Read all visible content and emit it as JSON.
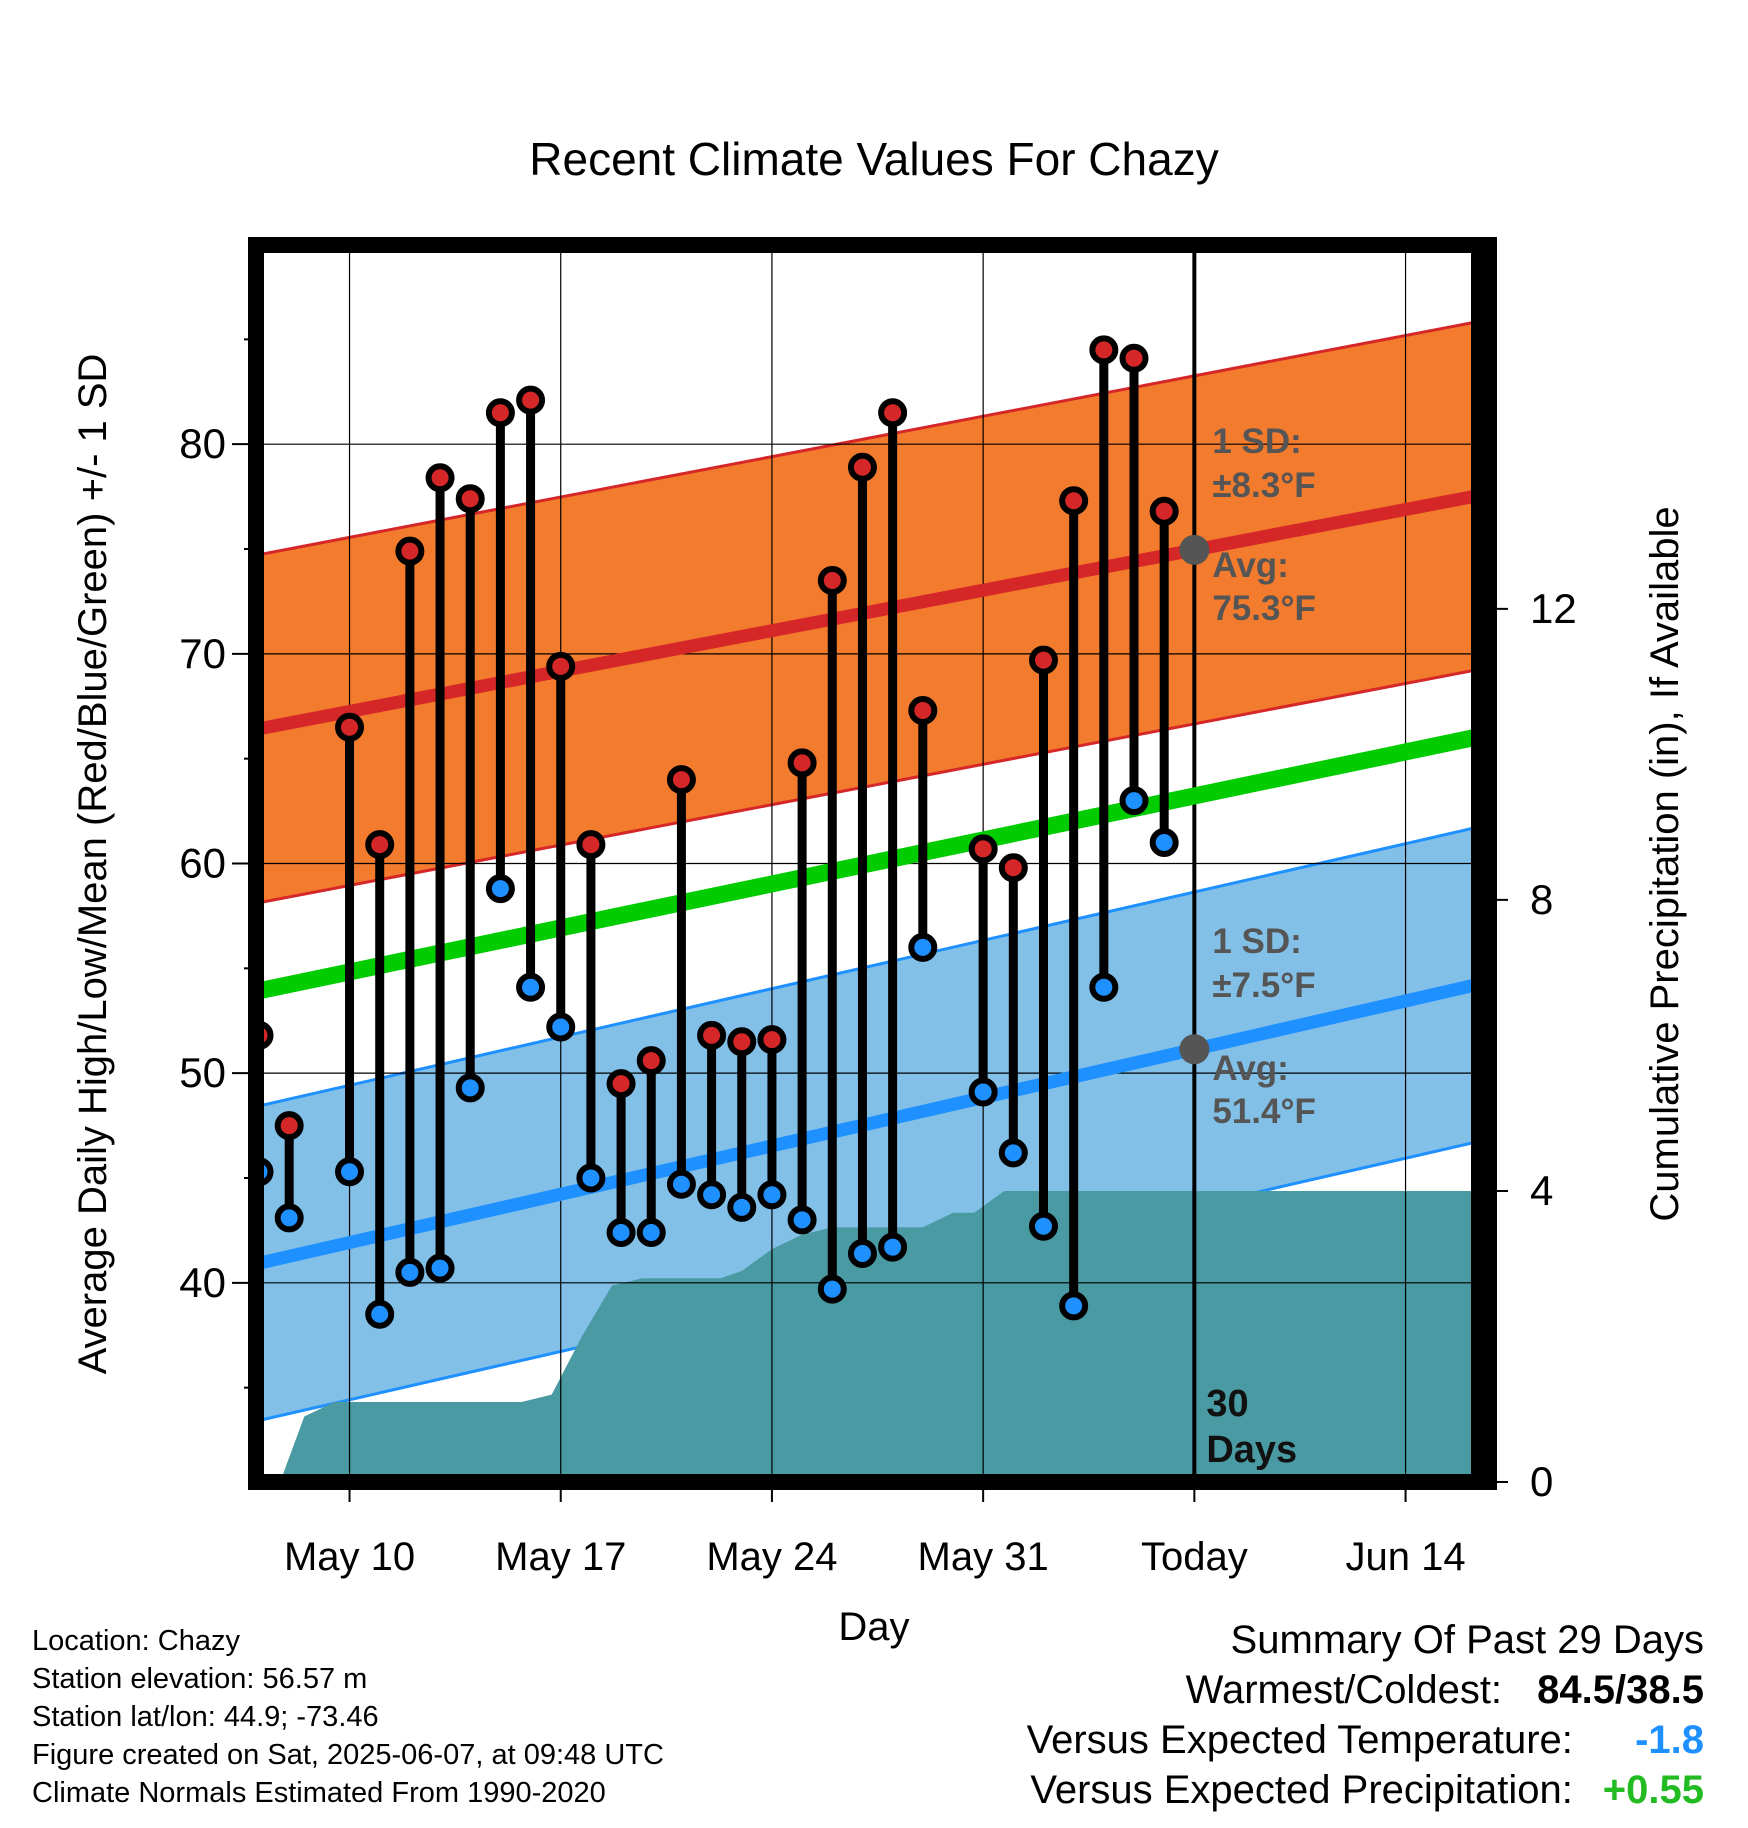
{
  "chart_data": {
    "type": "line",
    "title": "Recent Climate Values For Chazy",
    "xlabel": "Day",
    "ylabel_left": "Average Daily High/Low/Mean (Red/Blue/Green) +/- 1 SD",
    "ylabel_right": "Cumulative Precipitation (in), If Available",
    "x_ticks": [
      "May 10",
      "May 17",
      "May 24",
      "May 31",
      "Today",
      "Jun 14"
    ],
    "x_tick_days": [
      10,
      17,
      24,
      31,
      38,
      45
    ],
    "xlim": [
      6.9,
      47.6
    ],
    "ylim_left": [
      30.5,
      89.5
    ],
    "yticks_left": [
      40,
      50,
      60,
      70,
      80
    ],
    "ylim_right": [
      0,
      17
    ],
    "yticks_right": [
      0,
      4,
      8,
      12
    ],
    "grid": true,
    "today_day": 38,
    "days": [
      7,
      8,
      9,
      10,
      11,
      12,
      13,
      14,
      15,
      16,
      17,
      18,
      19,
      20,
      21,
      22,
      23,
      24,
      25,
      26,
      27,
      28,
      29,
      31,
      32,
      33,
      34,
      35,
      36,
      37
    ],
    "highs": [
      51.8,
      47.5,
      66.5,
      60.9,
      74.9,
      78.4,
      77.4,
      81.5,
      82.1,
      69.4,
      60.9,
      49.5,
      50.6,
      64.0,
      51.8,
      51.5,
      51.6,
      64.8,
      73.5,
      78.9,
      81.5,
      67.3,
      60.7,
      59.8,
      69.7,
      77.3,
      84.5,
      84.1,
      76.8
    ],
    "lows": [
      45.3,
      43.1,
      45.3,
      38.5,
      40.5,
      40.7,
      49.3,
      58.8,
      54.1,
      52.2,
      45.0,
      42.4,
      42.4,
      44.7,
      44.2,
      43.6,
      44.2,
      43.0,
      39.7,
      41.4,
      41.7,
      56.0,
      49.1,
      46.2,
      42.7,
      38.9,
      54.1,
      63.0,
      61.0
    ],
    "pair_days": [
      7,
      8,
      10,
      11,
      12,
      13,
      14,
      15,
      16,
      17,
      18,
      19,
      20,
      21,
      22,
      23,
      24,
      25,
      26,
      27,
      28,
      29,
      31,
      32,
      33,
      34,
      35,
      36,
      37
    ],
    "normal_high": {
      "start": 66.4,
      "end": 77.6,
      "sd": 8.3
    },
    "normal_low": {
      "start": 40.9,
      "end": 54.3,
      "sd": 7.5
    },
    "normal_mean": {
      "start": 53.9,
      "end": 66.1
    },
    "precip_cumulative": [
      [
        7.7,
        0
      ],
      [
        8.5,
        0.9
      ],
      [
        9.5,
        1.1
      ],
      [
        15.7,
        1.1
      ],
      [
        16.7,
        1.2
      ],
      [
        17.7,
        2.0
      ],
      [
        18.7,
        2.7
      ],
      [
        19.7,
        2.8
      ],
      [
        22.3,
        2.8
      ],
      [
        23.0,
        2.9
      ],
      [
        24.0,
        3.2
      ],
      [
        25.0,
        3.4
      ],
      [
        26.0,
        3.5
      ],
      [
        29.0,
        3.5
      ],
      [
        30.0,
        3.7
      ],
      [
        30.7,
        3.7
      ],
      [
        31.7,
        4.0
      ],
      [
        47.5,
        4.0
      ]
    ],
    "annotations": {
      "high_sd": "1 SD:",
      "high_sd_val": "±8.3°F",
      "high_avg": "Avg:",
      "high_avg_val": "75.3°F",
      "low_sd": "1 SD:",
      "low_sd_val": "±7.5°F",
      "low_avg": "Avg:",
      "low_avg_val": "51.4°F",
      "days_num": "30",
      "days_word": "Days"
    },
    "colors": {
      "high_band": "#f37b2d",
      "high_line": "#d62728",
      "low_band": "#82c0e8",
      "low_line": "#1e90ff",
      "mean_line": "#00cc00",
      "precip": "#4a9aa3",
      "high_dot": "#d62728",
      "low_dot": "#1e90ff",
      "annotation": "#555555"
    }
  },
  "info": {
    "location": "Location: Chazy",
    "elevation": "Station elevation: 56.57 m",
    "latlon": "Station lat/lon: 44.9; -73.46",
    "created": "Figure created on Sat, 2025-06-07, at 09:48 UTC",
    "normals": "Climate Normals Estimated From 1990-2020"
  },
  "summary": {
    "title": "Summary Of Past 29 Days",
    "warm_cold_label": "Warmest/Coldest:",
    "warm_cold_value": "84.5/38.5",
    "temp_label": "Versus Expected Temperature:",
    "temp_value": "-1.8",
    "temp_color": "#1e90ff",
    "precip_label": "Versus Expected Precipitation:",
    "precip_value": "+0.55",
    "precip_color": "#22bb22"
  }
}
